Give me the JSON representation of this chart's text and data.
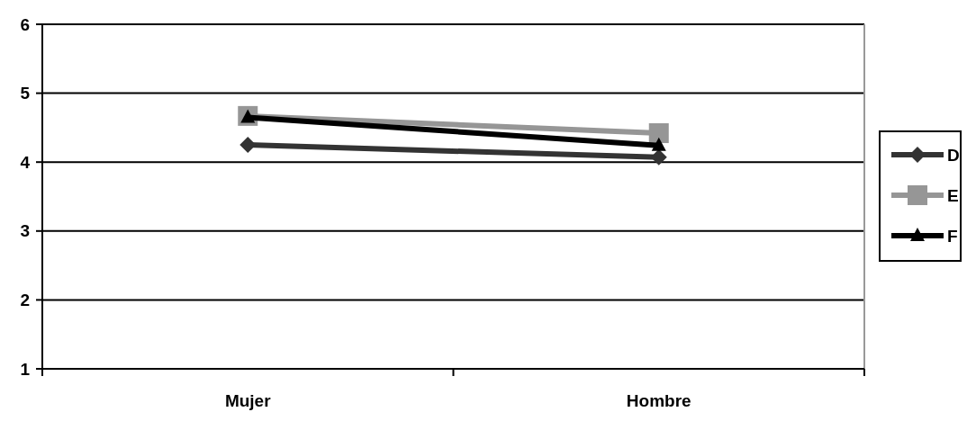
{
  "chart_data": {
    "type": "line",
    "categories": [
      "Mujer",
      "Hombre"
    ],
    "series": [
      {
        "name": "D",
        "color": "#333333",
        "values": [
          4.25,
          4.07
        ],
        "marker": "diamond"
      },
      {
        "name": "E",
        "color": "#969696",
        "values": [
          4.67,
          4.42
        ],
        "marker": "square"
      },
      {
        "name": "F",
        "color": "#000000",
        "values": [
          4.65,
          4.24
        ],
        "marker": "triangle"
      }
    ],
    "ylim": [
      1,
      6
    ],
    "yticks": [
      1,
      2,
      3,
      4,
      5,
      6
    ],
    "grid": "y",
    "legend": "right"
  }
}
